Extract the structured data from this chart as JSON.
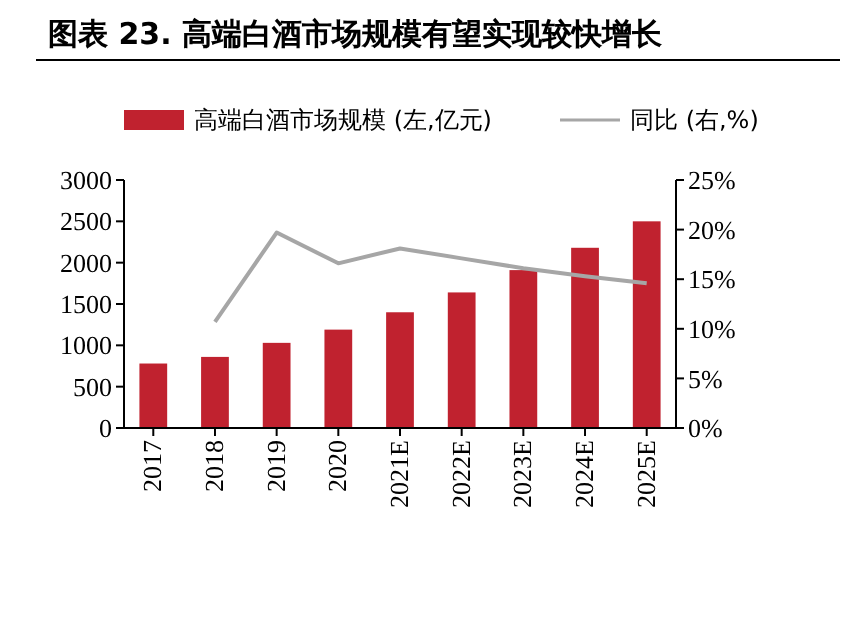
{
  "chart_data": {
    "type": "bar",
    "title": "图表 23. 高端白酒市场规模有望实现较快增长",
    "categories": [
      "2017",
      "2018",
      "2019",
      "2020",
      "2021E",
      "2022E",
      "2023E",
      "2024E",
      "2025E"
    ],
    "series": [
      {
        "name": "高端白酒市场规模 (左,亿元)",
        "color": "#c0222f",
        "values": [
          780,
          860,
          1030,
          1190,
          1400,
          1640,
          1910,
          2180,
          2500
        ]
      },
      {
        "name": "同比 (右,%)",
        "type": "line",
        "axis": "y2",
        "color": "#a6a6a6",
        "values": [
          null,
          10.7,
          19.7,
          16.6,
          18.1,
          17.1,
          16.1,
          15.3,
          14.6
        ]
      }
    ],
    "ylim": [
      0,
      3000
    ],
    "yticks": [
      0,
      500,
      1000,
      1500,
      2000,
      2500,
      3000
    ],
    "y2lim": [
      0,
      25
    ],
    "y2ticks": [
      {
        "value": 0,
        "label": "0%"
      },
      {
        "value": 5,
        "label": "5%"
      },
      {
        "value": 10,
        "label": "10%"
      },
      {
        "value": 15,
        "label": "15%"
      },
      {
        "value": 20,
        "label": "20%"
      },
      {
        "value": 25,
        "label": "25%"
      }
    ],
    "legend": "top",
    "grid": false,
    "marker": "none",
    "line_style": "solid"
  }
}
